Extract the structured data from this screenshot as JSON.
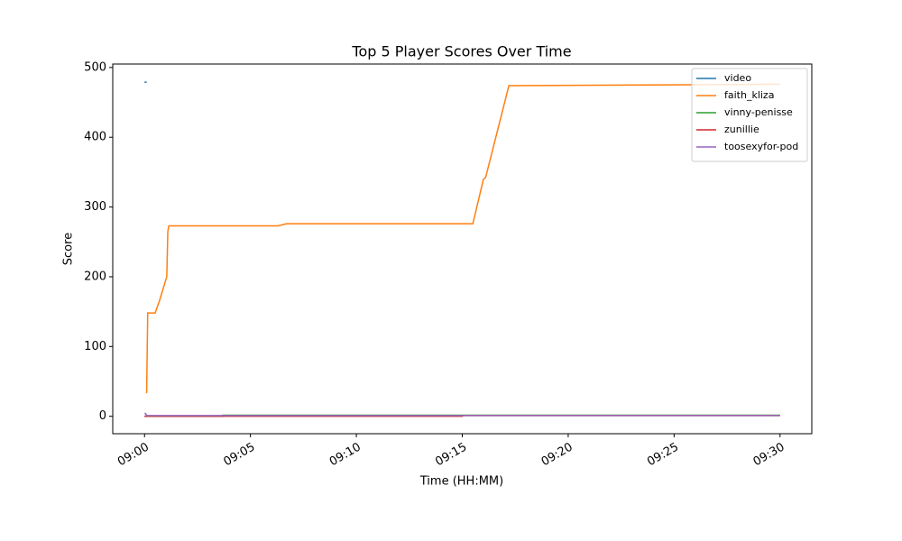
{
  "chart_data": {
    "type": "line",
    "title": "Top 5 Player Scores Over Time",
    "xlabel": "Time (HH:MM)",
    "ylabel": "Score",
    "xlim": [
      -1.5,
      31.5
    ],
    "xticks": [
      {
        "value": 0,
        "label": "09:00"
      },
      {
        "value": 5,
        "label": "09:05"
      },
      {
        "value": 10,
        "label": "09:10"
      },
      {
        "value": 15,
        "label": "09:15"
      },
      {
        "value": 20,
        "label": "09:20"
      },
      {
        "value": 25,
        "label": "09:25"
      },
      {
        "value": 30,
        "label": "09:30"
      }
    ],
    "ylim": [
      -25,
      505
    ],
    "yticks": [
      0,
      100,
      200,
      300,
      400,
      500
    ],
    "legend": "upper right",
    "series": [
      {
        "name": "video",
        "color": "#1f77b4",
        "x": [
          0,
          0.1
        ],
        "values": [
          479,
          479
        ]
      },
      {
        "name": "faith_kliza",
        "color": "#ff7f0e",
        "x": [
          0.1,
          0.15,
          0.5,
          0.7,
          1.0,
          1.05,
          1.1,
          1.15,
          6.3,
          6.7,
          15.5,
          16.0,
          16.1,
          17.2,
          30
        ],
        "values": [
          33,
          148,
          148,
          165,
          195,
          200,
          265,
          273,
          273,
          276,
          276,
          340,
          342,
          474,
          476
        ]
      },
      {
        "name": "vinny-penisse",
        "color": "#2ca02c",
        "x": [
          0,
          3.7,
          3.7,
          30
        ],
        "values": [
          0,
          0,
          1.5,
          1.5
        ]
      },
      {
        "name": "zunillie",
        "color": "#d62728",
        "x": [
          0,
          15,
          15,
          30
        ],
        "values": [
          0,
          0,
          1,
          1
        ]
      },
      {
        "name": "toosexyfor-pod",
        "color": "#9467bd",
        "x": [
          0,
          0.05,
          0.1,
          30
        ],
        "values": [
          4,
          4,
          1,
          1
        ]
      }
    ]
  }
}
